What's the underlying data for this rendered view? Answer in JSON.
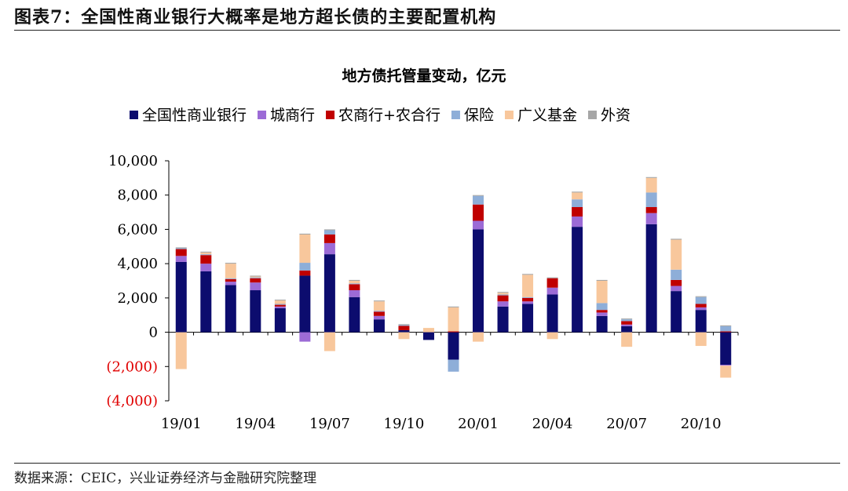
{
  "figure": {
    "title": "图表7：全国性商业银行大概率是地方超长债的主要配置机构",
    "source": "数据来源：CEIC，兴业证券经济与金融研究院整理"
  },
  "chart_data": {
    "type": "bar",
    "stacked": true,
    "title": "地方债托管量变动，亿元",
    "categories": [
      "19/01",
      "19/02",
      "19/03",
      "19/04",
      "19/05",
      "19/06",
      "19/07",
      "19/08",
      "19/09",
      "19/10",
      "19/11",
      "19/12",
      "20/01",
      "20/02",
      "20/03",
      "20/04",
      "20/05",
      "20/06",
      "20/07",
      "20/08",
      "20/09",
      "20/10",
      "20/11"
    ],
    "x_tick_labels": [
      {
        "index": 0,
        "label": "19/01"
      },
      {
        "index": 3,
        "label": "19/04"
      },
      {
        "index": 6,
        "label": "19/07"
      },
      {
        "index": 9,
        "label": "19/10"
      },
      {
        "index": 12,
        "label": "20/01"
      },
      {
        "index": 15,
        "label": "20/04"
      },
      {
        "index": 18,
        "label": "20/07"
      },
      {
        "index": 21,
        "label": "20/10"
      }
    ],
    "series": [
      {
        "name": "全国性商业银行",
        "color": "#0c0c6e",
        "values": [
          4100,
          3550,
          2750,
          2450,
          1400,
          3300,
          4550,
          2050,
          750,
          120,
          -450,
          -1600,
          6000,
          1500,
          1650,
          2200,
          6150,
          950,
          350,
          6300,
          2400,
          1300,
          -1900
        ]
      },
      {
        "name": "城商行",
        "color": "#9c6bd6",
        "values": [
          350,
          450,
          200,
          450,
          100,
          -550,
          650,
          400,
          200,
          0,
          0,
          0,
          500,
          300,
          150,
          400,
          600,
          200,
          100,
          650,
          300,
          150,
          -50
        ]
      },
      {
        "name": "农商行+农合行",
        "color": "#c00000",
        "values": [
          400,
          500,
          150,
          250,
          100,
          300,
          500,
          350,
          250,
          250,
          0,
          50,
          950,
          350,
          200,
          550,
          550,
          150,
          200,
          350,
          350,
          200,
          50
        ]
      },
      {
        "name": "保险",
        "color": "#8eaed8",
        "values": [
          50,
          50,
          50,
          50,
          50,
          450,
          250,
          50,
          50,
          50,
          0,
          -700,
          500,
          50,
          50,
          0,
          450,
          400,
          100,
          850,
          600,
          400,
          300
        ]
      },
      {
        "name": "广义基金",
        "color": "#f8c79c",
        "values": [
          -2150,
          100,
          850,
          50,
          200,
          1650,
          -1100,
          150,
          550,
          -400,
          250,
          1400,
          -550,
          100,
          1300,
          -400,
          400,
          1300,
          -850,
          850,
          1750,
          -800,
          -700
        ]
      },
      {
        "name": "外资",
        "color": "#a6a6a6",
        "values": [
          50,
          50,
          50,
          50,
          50,
          50,
          50,
          50,
          50,
          50,
          0,
          50,
          50,
          50,
          50,
          50,
          50,
          50,
          50,
          50,
          50,
          50,
          50
        ]
      }
    ],
    "ylim": [
      -4000,
      10000
    ],
    "yticks": [
      -4000,
      -2000,
      0,
      2000,
      4000,
      6000,
      8000,
      10000
    ],
    "ytick_labels": [
      "(4,000)",
      "(2,000)",
      "0",
      "2,000",
      "4,000",
      "6,000",
      "8,000",
      "10,000"
    ],
    "negative_label_color": "#e00000",
    "xlabel": "",
    "ylabel": "",
    "legend_position": "top",
    "grid": false
  }
}
